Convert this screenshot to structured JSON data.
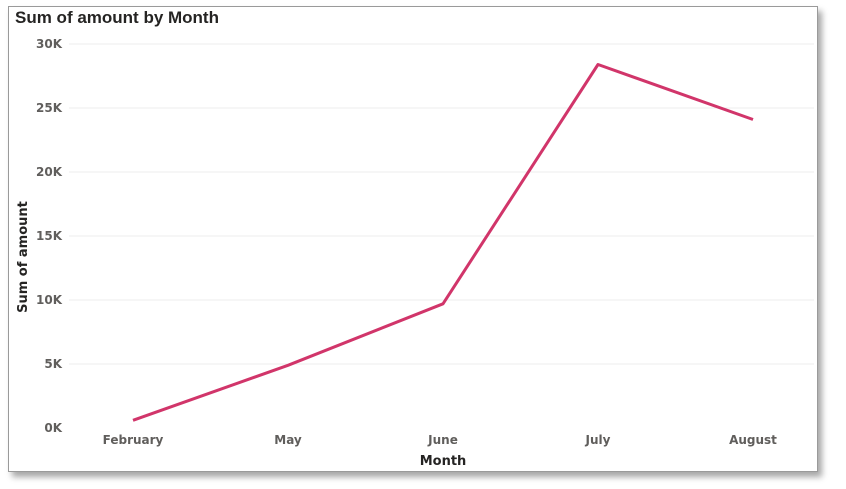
{
  "chart_data": {
    "type": "line",
    "title": "Sum of amount by Month",
    "xlabel": "Month",
    "ylabel": "Sum of amount",
    "categories": [
      "February",
      "May",
      "June",
      "July",
      "August"
    ],
    "series": [
      {
        "values": [
          600,
          4900,
          9700,
          28400,
          24100
        ]
      }
    ],
    "ylim": [
      0,
      30000
    ],
    "yticks": [
      0,
      5000,
      10000,
      15000,
      20000,
      25000,
      30000
    ],
    "ytick_labels": [
      "0K",
      "5K",
      "10K",
      "15K",
      "20K",
      "25K",
      "30K"
    ],
    "grid": true,
    "line_color": "#d1356a",
    "grid_color": "#eeeeee"
  }
}
